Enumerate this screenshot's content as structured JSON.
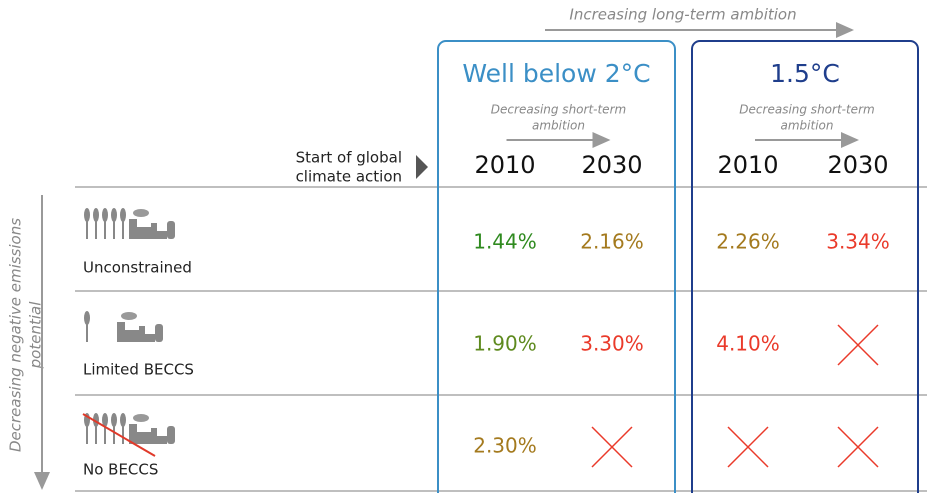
{
  "top_label": "Increasing long-term ambition",
  "side_label": [
    "Decreasing negative emissions",
    "potential"
  ],
  "row_header": [
    "Start of global",
    "climate action"
  ],
  "groups": [
    {
      "title": "Well below 2°C",
      "color": "#3b8fc6",
      "subtitle": [
        "Decreasing short-term",
        "ambition"
      ],
      "columns": [
        "2010",
        "2030"
      ]
    },
    {
      "title": "1.5°C",
      "color": "#1f3e8c",
      "subtitle": [
        "Decreasing short-term",
        "ambition"
      ],
      "columns": [
        "2010",
        "2030"
      ]
    }
  ],
  "rows": [
    {
      "label": "Unconstrained",
      "cells": [
        "1.44%",
        "2.16%",
        "2.26%",
        "3.34%"
      ],
      "colors": [
        "#2f8a1f",
        "#a47a1e",
        "#a47a1e",
        "#ea3a2a"
      ]
    },
    {
      "label": "Limited BECCS",
      "cells": [
        "1.90%",
        "3.30%",
        "4.10%",
        null
      ],
      "colors": [
        "#5e8a1e",
        "#ea3a2a",
        "#ea3a2a",
        "#ea3a2a"
      ]
    },
    {
      "label": "No BECCS",
      "cells": [
        "2.30%",
        null,
        null,
        null
      ],
      "colors": [
        "#a47a1e",
        "#ea3a2a",
        "#ea3a2a",
        "#ea3a2a"
      ]
    }
  ]
}
